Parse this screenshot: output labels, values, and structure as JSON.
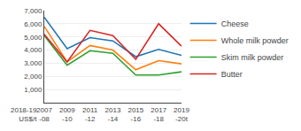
{
  "chart_data": {
    "type": "line",
    "categories": [
      "2007\n-08",
      "2009\n-10",
      "2011\n-12",
      "2013\n-14",
      "2015\n-16",
      "2017\n-18",
      "2019\n-20t"
    ],
    "series": [
      {
        "name": "Cheese",
        "values": [
          6500,
          4100,
          4950,
          4700,
          3500,
          4050,
          3600
        ]
      },
      {
        "name": "Whole milk powder",
        "values": [
          5800,
          3100,
          4350,
          4000,
          2500,
          3200,
          2950
        ]
      },
      {
        "name": "Skim milk powder",
        "values": [
          5100,
          2850,
          3950,
          3750,
          2100,
          2100,
          2350
        ]
      },
      {
        "name": "Butter",
        "values": [
          5200,
          3100,
          5500,
          5100,
          3300,
          6000,
          4300
        ]
      }
    ],
    "ylabel": "2018-19\nUS$/t",
    "ylim": [
      0,
      7000
    ],
    "yticks": [
      {
        "value": 1000,
        "label": "1,000"
      },
      {
        "value": 2000,
        "label": "2,000"
      },
      {
        "value": 3000,
        "label": "3,000"
      },
      {
        "value": 4000,
        "label": "4,000"
      },
      {
        "value": 5000,
        "label": "5,000"
      },
      {
        "value": 6000,
        "label": "6,000"
      },
      {
        "value": 7000,
        "label": "7,000"
      }
    ],
    "grid": true,
    "legend": "right"
  }
}
